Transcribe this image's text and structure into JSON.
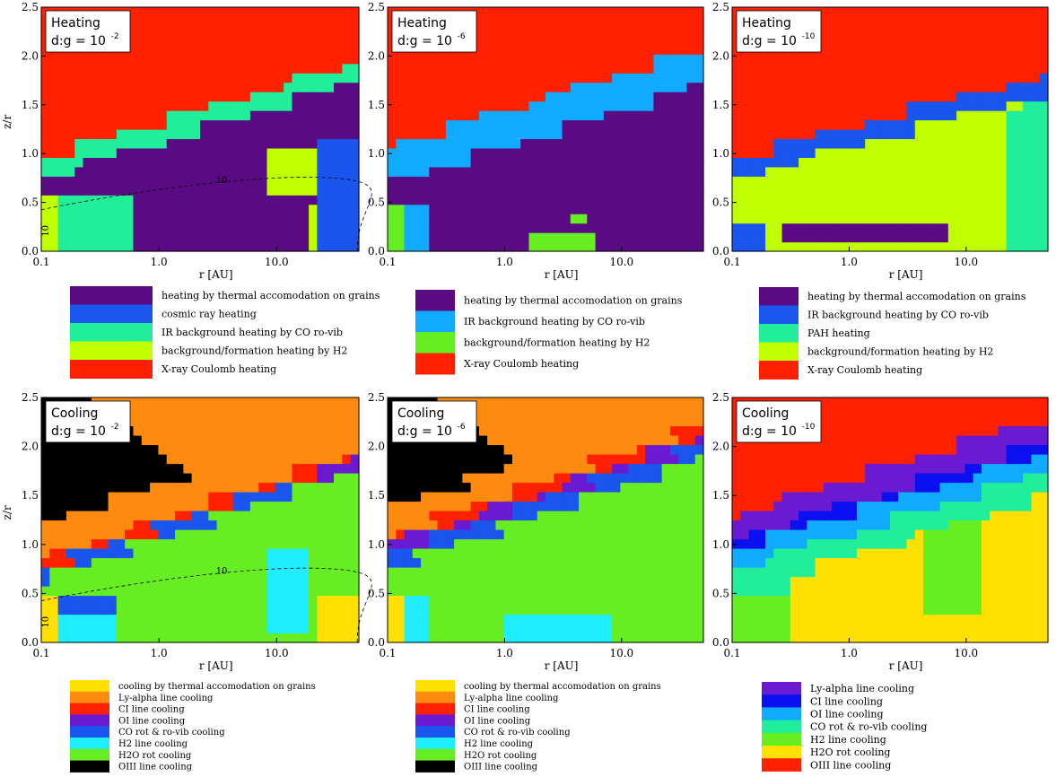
{
  "palette": {
    "purple": "#5a0a82",
    "blue": "#1a55ee",
    "aqua": "#20ee9a",
    "lime": "#c0ff00",
    "red": "#ff2000",
    "sky": "#10aaff",
    "green": "#66ee22",
    "yellow": "#ffe000",
    "orange": "#ff8a10",
    "violet": "#6a1ad0",
    "cyan": "#20eeff",
    "black": "#000000",
    "cblue": "#0a10f0"
  },
  "chart_data": [
    {
      "type": "heatmap",
      "kind": "heating",
      "box_title": "Heating",
      "box_ratio": "d:g = 10",
      "box_exponent": "-2",
      "xlabel": "r [AU]",
      "ylabel": "z/r",
      "xscale": "log",
      "xlim": [
        0.1,
        50
      ],
      "ylim": [
        0,
        2.5
      ],
      "xticks": [
        "0.1",
        "1.0",
        "10.0"
      ],
      "yticks": [
        "0.0",
        "0.5",
        "1.0",
        "1.5",
        "2.0",
        "2.5"
      ],
      "contour_labels": [
        "10",
        "10"
      ],
      "legend": [
        {
          "label": "heating by thermal accomodation on grains",
          "color": "purple"
        },
        {
          "label": "cosmic ray heating",
          "color": "blue"
        },
        {
          "label": "IR background heating by CO ro-vib",
          "color": "aqua"
        },
        {
          "label": "background/formation heating by H2",
          "color": "lime"
        },
        {
          "label": "X-ray Coulomb heating",
          "color": "red"
        }
      ]
    },
    {
      "type": "heatmap",
      "kind": "heating",
      "box_title": "Heating",
      "box_ratio": "d:g = 10",
      "box_exponent": "-6",
      "xlabel": "r [AU]",
      "ylabel": "",
      "xscale": "log",
      "xlim": [
        0.1,
        50
      ],
      "ylim": [
        0,
        2.5
      ],
      "xticks": [
        "0.1",
        "1.0",
        "10.0"
      ],
      "yticks": [
        "0.0",
        "0.5",
        "1.0",
        "1.5",
        "2.0",
        "2.5"
      ],
      "contour_labels": [],
      "legend": [
        {
          "label": "heating by thermal accomodation on grains",
          "color": "purple"
        },
        {
          "label": "IR background heating by CO ro-vib",
          "color": "sky"
        },
        {
          "label": "background/formation heating by H2",
          "color": "green"
        },
        {
          "label": "X-ray Coulomb heating",
          "color": "red"
        }
      ]
    },
    {
      "type": "heatmap",
      "kind": "heating",
      "box_title": "Heating",
      "box_ratio": "d:g = 10",
      "box_exponent": "-10",
      "xlabel": "r [AU]",
      "ylabel": "",
      "xscale": "log",
      "xlim": [
        0.1,
        50
      ],
      "ylim": [
        0,
        2.5
      ],
      "xticks": [
        "0.1",
        "1.0",
        "10.0"
      ],
      "yticks": [
        "0.0",
        "0.5",
        "1.0",
        "1.5",
        "2.0",
        "2.5"
      ],
      "contour_labels": [],
      "legend": [
        {
          "label": "heating by thermal accomodation on grains",
          "color": "purple"
        },
        {
          "label": "IR background heating by CO ro-vib",
          "color": "blue"
        },
        {
          "label": "PAH heating",
          "color": "aqua"
        },
        {
          "label": "background/formation heating by H2",
          "color": "lime"
        },
        {
          "label": "X-ray Coulomb heating",
          "color": "red"
        }
      ]
    },
    {
      "type": "heatmap",
      "kind": "cooling",
      "box_title": "Cooling",
      "box_ratio": "d:g = 10",
      "box_exponent": "-2",
      "xlabel": "r [AU]",
      "ylabel": "z/r",
      "xscale": "log",
      "xlim": [
        0.1,
        50
      ],
      "ylim": [
        0,
        2.5
      ],
      "xticks": [
        "0.1",
        "1.0",
        "10.0"
      ],
      "yticks": [
        "0.0",
        "0.5",
        "1.0",
        "1.5",
        "2.0",
        "2.5"
      ],
      "contour_labels": [
        "10",
        "10"
      ],
      "legend": [
        {
          "label": "cooling by thermal accomodation on grains",
          "color": "yellow"
        },
        {
          "label": "Ly-alpha line cooling",
          "color": "orange"
        },
        {
          "label": "CI line cooling",
          "color": "red"
        },
        {
          "label": "OI line cooling",
          "color": "violet"
        },
        {
          "label": "CO rot & ro-vib cooling",
          "color": "blue"
        },
        {
          "label": "H2 line cooling",
          "color": "cyan"
        },
        {
          "label": "H2O rot cooling",
          "color": "green"
        },
        {
          "label": "OIII line cooling",
          "color": "black"
        }
      ]
    },
    {
      "type": "heatmap",
      "kind": "cooling",
      "box_title": "Cooling",
      "box_ratio": "d:g = 10",
      "box_exponent": "-6",
      "xlabel": "r [AU]",
      "ylabel": "",
      "xscale": "log",
      "xlim": [
        0.1,
        50
      ],
      "ylim": [
        0,
        2.5
      ],
      "xticks": [
        "0.1",
        "1.0",
        "10.0"
      ],
      "yticks": [
        "0.0",
        "0.5",
        "1.0",
        "1.5",
        "2.0",
        "2.5"
      ],
      "contour_labels": [],
      "legend": [
        {
          "label": "cooling by thermal accomodation on grains",
          "color": "yellow"
        },
        {
          "label": "Ly-alpha line cooling",
          "color": "orange"
        },
        {
          "label": "CI line cooling",
          "color": "red"
        },
        {
          "label": "OI line cooling",
          "color": "violet"
        },
        {
          "label": "CO rot & ro-vib cooling",
          "color": "blue"
        },
        {
          "label": "H2 line cooling",
          "color": "cyan"
        },
        {
          "label": "H2O rot cooling",
          "color": "green"
        },
        {
          "label": "OIII line cooling",
          "color": "black"
        }
      ]
    },
    {
      "type": "heatmap",
      "kind": "cooling",
      "box_title": "Cooling",
      "box_ratio": "d:g = 10",
      "box_exponent": "-10",
      "xlabel": "r [AU]",
      "ylabel": "",
      "xscale": "log",
      "xlim": [
        0.1,
        50
      ],
      "ylim": [
        0,
        2.5
      ],
      "xticks": [
        "0.1",
        "1.0",
        "10.0"
      ],
      "yticks": [
        "0.0",
        "0.5",
        "1.0",
        "1.5",
        "2.0",
        "2.5"
      ],
      "contour_labels": [],
      "legend": [
        {
          "label": "Ly-alpha line cooling",
          "color": "violet"
        },
        {
          "label": "CI line cooling",
          "color": "cblue"
        },
        {
          "label": "OI line cooling",
          "color": "sky"
        },
        {
          "label": "CO rot & ro-vib cooling",
          "color": "aqua"
        },
        {
          "label": "H2 line cooling",
          "color": "green"
        },
        {
          "label": "H2O rot cooling",
          "color": "yellow"
        },
        {
          "label": "OIII line cooling",
          "color": "red"
        }
      ]
    }
  ]
}
